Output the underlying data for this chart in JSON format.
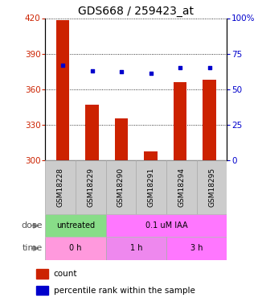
{
  "title": "GDS668 / 259423_at",
  "samples": [
    "GSM18228",
    "GSM18229",
    "GSM18290",
    "GSM18291",
    "GSM18294",
    "GSM18295"
  ],
  "counts": [
    418,
    347,
    335,
    307,
    366,
    368
  ],
  "percentiles": [
    67,
    63,
    62,
    61,
    65,
    65
  ],
  "ylim_left": [
    300,
    420
  ],
  "ylim_right": [
    0,
    100
  ],
  "yticks_left": [
    300,
    330,
    360,
    390,
    420
  ],
  "yticks_right": [
    0,
    25,
    50,
    75,
    100
  ],
  "bar_color": "#cc2200",
  "dot_color": "#0000cc",
  "bar_width": 0.45,
  "dose_labels": [
    {
      "text": "untreated",
      "span": [
        0,
        2
      ],
      "color": "#88dd88"
    },
    {
      "text": "0.1 uM IAA",
      "span": [
        2,
        6
      ],
      "color": "#ff77ff"
    }
  ],
  "time_labels": [
    {
      "text": "0 h",
      "span": [
        0,
        2
      ],
      "color": "#ff99dd"
    },
    {
      "text": "1 h",
      "span": [
        2,
        4
      ],
      "color": "#ee88ee"
    },
    {
      "text": "3 h",
      "span": [
        4,
        6
      ],
      "color": "#ff77ff"
    }
  ],
  "left_axis_color": "#cc2200",
  "right_axis_color": "#0000cc",
  "grid_color": "#000000",
  "background_color": "#ffffff",
  "title_fontsize": 10,
  "tick_fontsize": 7.5,
  "sample_fontsize": 6.5,
  "label_fontsize": 8,
  "legend_fontsize": 7.5
}
